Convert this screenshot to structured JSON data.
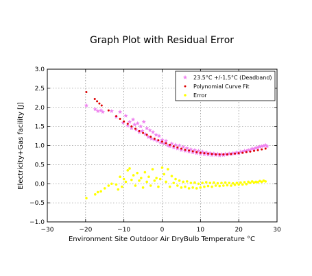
{
  "chart_data": {
    "type": "scatter",
    "title": "Graph Plot with Residual Error",
    "xlabel": "Environment Site Outdoor Air DryBulb Temperature °C",
    "ylabel": "Electricity+Gas facility [J]",
    "xlim": [
      -30,
      30
    ],
    "ylim": [
      -1.0,
      3.0
    ],
    "xticks": [
      -30,
      -20,
      -10,
      0,
      10,
      20,
      30
    ],
    "yticks": [
      -1.0,
      -0.5,
      0.0,
      0.5,
      1.0,
      1.5,
      2.0,
      2.5,
      3.0
    ],
    "xtick_labels": [
      "−30",
      "−20",
      "−10",
      "0",
      "10",
      "20",
      "30"
    ],
    "ytick_labels": [
      "−1.0",
      "−0.5",
      "0.0",
      "0.5",
      "1.0",
      "1.5",
      "2.0",
      "2.5",
      "3.0"
    ],
    "grid": true,
    "legend_position": "top-right",
    "series": [
      {
        "name": "23.5°C +/-1.5°C (Deadband)",
        "marker": "star",
        "color": "#ee82ee",
        "points": [
          [
            -19.8,
            2.05
          ],
          [
            -17.5,
            1.95
          ],
          [
            -16.8,
            1.9
          ],
          [
            -16.0,
            1.92
          ],
          [
            -15.5,
            1.88
          ],
          [
            -13.2,
            1.9
          ],
          [
            -12.0,
            1.75
          ],
          [
            -11.0,
            1.88
          ],
          [
            -10.2,
            1.6
          ],
          [
            -9.5,
            1.78
          ],
          [
            -9.0,
            1.52
          ],
          [
            -8.5,
            1.62
          ],
          [
            -8.0,
            1.45
          ],
          [
            -7.6,
            1.68
          ],
          [
            -7.2,
            1.55
          ],
          [
            -6.8,
            1.42
          ],
          [
            -6.4,
            1.58
          ],
          [
            -6.0,
            1.35
          ],
          [
            -5.6,
            1.5
          ],
          [
            -5.2,
            1.38
          ],
          [
            -4.8,
            1.62
          ],
          [
            -4.4,
            1.3
          ],
          [
            -4.0,
            1.45
          ],
          [
            -3.6,
            1.22
          ],
          [
            -3.2,
            1.4
          ],
          [
            -2.8,
            1.18
          ],
          [
            -2.4,
            1.35
          ],
          [
            -2.0,
            1.15
          ],
          [
            -1.6,
            1.28
          ],
          [
            -1.2,
            1.12
          ],
          [
            -0.8,
            1.25
          ],
          [
            -0.4,
            1.08
          ],
          [
            0.0,
            1.15
          ],
          [
            0.5,
            1.05
          ],
          [
            1.0,
            1.12
          ],
          [
            1.5,
            1.0
          ],
          [
            2.0,
            0.98
          ],
          [
            2.5,
            1.05
          ],
          [
            3.0,
            0.95
          ],
          [
            3.5,
            1.02
          ],
          [
            4.0,
            0.92
          ],
          [
            4.5,
            1.0
          ],
          [
            5.0,
            0.88
          ],
          [
            5.5,
            0.96
          ],
          [
            6.0,
            0.86
          ],
          [
            6.5,
            0.93
          ],
          [
            7.0,
            0.84
          ],
          [
            7.5,
            0.9
          ],
          [
            8.0,
            0.82
          ],
          [
            8.5,
            0.88
          ],
          [
            9.0,
            0.8
          ],
          [
            9.5,
            0.86
          ],
          [
            10.0,
            0.78
          ],
          [
            10.5,
            0.84
          ],
          [
            11.0,
            0.77
          ],
          [
            11.5,
            0.82
          ],
          [
            12.0,
            0.76
          ],
          [
            12.5,
            0.8
          ],
          [
            13.0,
            0.75
          ],
          [
            13.5,
            0.79
          ],
          [
            14.0,
            0.75
          ],
          [
            14.5,
            0.78
          ],
          [
            15.0,
            0.74
          ],
          [
            15.5,
            0.77
          ],
          [
            16.0,
            0.75
          ],
          [
            16.5,
            0.78
          ],
          [
            17.0,
            0.76
          ],
          [
            17.5,
            0.79
          ],
          [
            18.0,
            0.77
          ],
          [
            18.5,
            0.8
          ],
          [
            19.0,
            0.79
          ],
          [
            19.5,
            0.82
          ],
          [
            20.0,
            0.8
          ],
          [
            20.5,
            0.84
          ],
          [
            21.0,
            0.83
          ],
          [
            21.5,
            0.86
          ],
          [
            22.0,
            0.85
          ],
          [
            22.5,
            0.88
          ],
          [
            23.0,
            0.88
          ],
          [
            23.5,
            0.92
          ],
          [
            24.0,
            0.91
          ],
          [
            24.5,
            0.94
          ],
          [
            25.0,
            0.95
          ],
          [
            25.5,
            0.97
          ],
          [
            26.0,
            0.98
          ],
          [
            26.5,
            0.99
          ],
          [
            27.0,
            1.01
          ],
          [
            27.4,
            0.98
          ]
        ]
      },
      {
        "name": "Polynomial Curve Fit",
        "marker": "dot",
        "color": "#dd0000",
        "points": [
          [
            -19.8,
            2.4
          ],
          [
            -17.6,
            2.22
          ],
          [
            -17.0,
            2.16
          ],
          [
            -16.4,
            2.1
          ],
          [
            -15.8,
            2.05
          ],
          [
            -14.0,
            1.92
          ],
          [
            -12.0,
            1.77
          ],
          [
            -11.0,
            1.7
          ],
          [
            -10.0,
            1.63
          ],
          [
            -9.0,
            1.57
          ],
          [
            -8.0,
            1.5
          ],
          [
            -7.0,
            1.44
          ],
          [
            -6.0,
            1.38
          ],
          [
            -5.0,
            1.33
          ],
          [
            -4.0,
            1.28
          ],
          [
            -3.0,
            1.23
          ],
          [
            -2.0,
            1.18
          ],
          [
            -1.0,
            1.14
          ],
          [
            0.0,
            1.1
          ],
          [
            1.0,
            1.06
          ],
          [
            2.0,
            1.02
          ],
          [
            3.0,
            0.98
          ],
          [
            4.0,
            0.95
          ],
          [
            5.0,
            0.92
          ],
          [
            6.0,
            0.89
          ],
          [
            7.0,
            0.87
          ],
          [
            8.0,
            0.85
          ],
          [
            9.0,
            0.83
          ],
          [
            10.0,
            0.81
          ],
          [
            11.0,
            0.8
          ],
          [
            12.0,
            0.79
          ],
          [
            13.0,
            0.78
          ],
          [
            14.0,
            0.77
          ],
          [
            15.0,
            0.77
          ],
          [
            16.0,
            0.77
          ],
          [
            17.0,
            0.77
          ],
          [
            18.0,
            0.78
          ],
          [
            19.0,
            0.79
          ],
          [
            20.0,
            0.8
          ],
          [
            21.0,
            0.81
          ],
          [
            22.0,
            0.83
          ],
          [
            23.0,
            0.84
          ],
          [
            24.0,
            0.86
          ],
          [
            25.0,
            0.88
          ],
          [
            26.0,
            0.9
          ],
          [
            27.0,
            0.92
          ]
        ]
      },
      {
        "name": "Error",
        "marker": "dot",
        "color": "#ffff00",
        "points": [
          [
            -19.8,
            -0.38
          ],
          [
            -17.5,
            -0.28
          ],
          [
            -16.8,
            -0.22
          ],
          [
            -16.0,
            -0.2
          ],
          [
            -15.0,
            -0.12
          ],
          [
            -14.0,
            -0.05
          ],
          [
            -13.2,
            0.0
          ],
          [
            -12.0,
            -0.02
          ],
          [
            -11.5,
            -0.15
          ],
          [
            -11.0,
            0.18
          ],
          [
            -10.5,
            -0.08
          ],
          [
            -10.0,
            0.12
          ],
          [
            -9.5,
            0.05
          ],
          [
            -9.0,
            0.35
          ],
          [
            -8.5,
            0.4
          ],
          [
            -8.0,
            0.1
          ],
          [
            -7.5,
            0.22
          ],
          [
            -7.0,
            -0.05
          ],
          [
            -6.5,
            0.28
          ],
          [
            -6.0,
            0.08
          ],
          [
            -5.5,
            0.15
          ],
          [
            -5.0,
            -0.1
          ],
          [
            -4.5,
            0.3
          ],
          [
            -4.0,
            0.05
          ],
          [
            -3.5,
            0.18
          ],
          [
            -3.0,
            -0.05
          ],
          [
            -2.5,
            0.38
          ],
          [
            -2.0,
            0.08
          ],
          [
            -1.5,
            0.15
          ],
          [
            -1.0,
            -0.08
          ],
          [
            -0.5,
            0.12
          ],
          [
            0.0,
            0.42
          ],
          [
            0.5,
            0.25
          ],
          [
            1.0,
            0.05
          ],
          [
            1.5,
            0.38
          ],
          [
            2.0,
            -0.08
          ],
          [
            2.5,
            0.2
          ],
          [
            3.0,
            0.02
          ],
          [
            3.5,
            0.12
          ],
          [
            4.0,
            -0.05
          ],
          [
            4.5,
            0.08
          ],
          [
            5.0,
            -0.1
          ],
          [
            5.5,
            0.05
          ],
          [
            6.0,
            -0.08
          ],
          [
            6.5,
            0.06
          ],
          [
            7.0,
            -0.12
          ],
          [
            7.5,
            0.02
          ],
          [
            8.0,
            -0.1
          ],
          [
            8.5,
            0.03
          ],
          [
            9.0,
            -0.12
          ],
          [
            9.5,
            0.0
          ],
          [
            10.0,
            -0.1
          ],
          [
            10.5,
            0.02
          ],
          [
            11.0,
            -0.08
          ],
          [
            11.5,
            0.04
          ],
          [
            12.0,
            -0.06
          ],
          [
            12.5,
            0.02
          ],
          [
            13.0,
            -0.08
          ],
          [
            13.5,
            0.03
          ],
          [
            14.0,
            -0.05
          ],
          [
            14.5,
            0.01
          ],
          [
            15.0,
            -0.06
          ],
          [
            15.5,
            0.02
          ],
          [
            16.0,
            -0.05
          ],
          [
            16.5,
            0.03
          ],
          [
            17.0,
            -0.04
          ],
          [
            17.5,
            0.02
          ],
          [
            18.0,
            -0.05
          ],
          [
            18.5,
            0.01
          ],
          [
            19.0,
            -0.03
          ],
          [
            19.5,
            0.02
          ],
          [
            20.0,
            -0.02
          ],
          [
            20.5,
            0.03
          ],
          [
            21.0,
            -0.02
          ],
          [
            21.5,
            0.04
          ],
          [
            22.0,
            -0.01
          ],
          [
            22.5,
            0.05
          ],
          [
            23.0,
            0.02
          ],
          [
            23.5,
            0.06
          ],
          [
            24.0,
            0.03
          ],
          [
            24.5,
            0.05
          ],
          [
            25.0,
            0.04
          ],
          [
            25.5,
            0.07
          ],
          [
            26.0,
            0.05
          ],
          [
            26.5,
            0.08
          ],
          [
            27.0,
            0.06
          ]
        ]
      }
    ]
  }
}
